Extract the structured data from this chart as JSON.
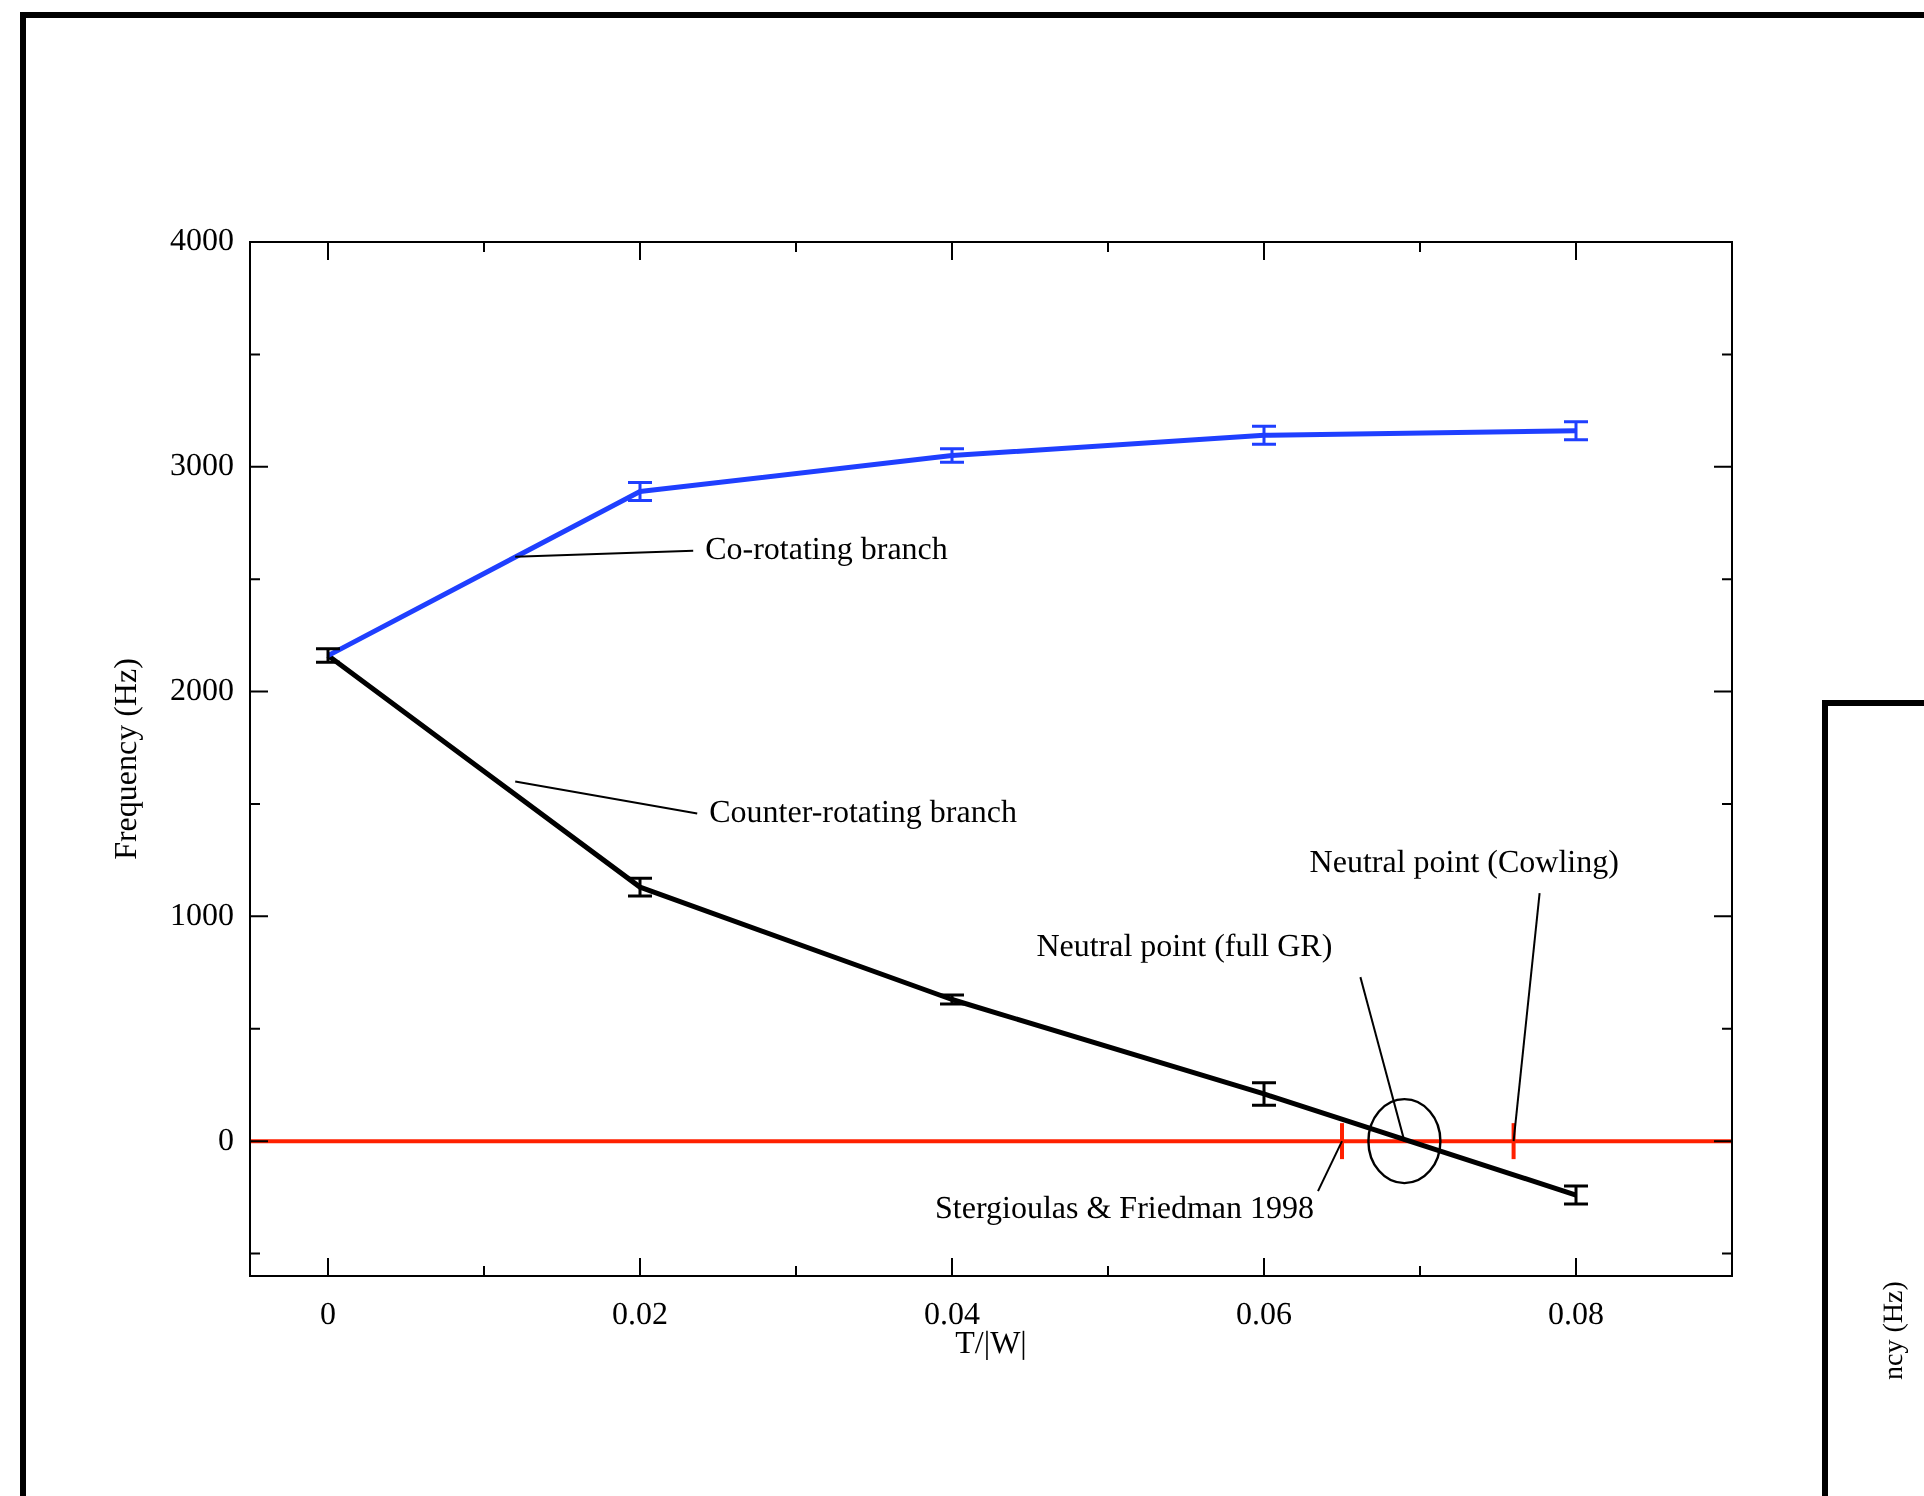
{
  "chart_data": {
    "type": "line",
    "xlabel": "T/|W|",
    "ylabel": "Frequency (Hz)",
    "x": [
      0,
      0.02,
      0.04,
      0.06,
      0.08
    ],
    "series": [
      {
        "color": "#1f3fff",
        "values": [
          2160,
          2890,
          3050,
          3140,
          3160
        ],
        "errors": [
          null,
          40,
          30,
          40,
          40
        ]
      },
      {
        "color": "#000000",
        "values": [
          2160,
          1130,
          630,
          210,
          -240
        ],
        "errors": [
          30,
          40,
          20,
          50,
          40
        ]
      }
    ],
    "xlim": [
      -0.005,
      0.09
    ],
    "xticks": [
      0,
      {
        "value": 0.01,
        "label": null
      },
      0.02,
      {
        "value": 0.03,
        "label": null
      },
      0.04,
      {
        "value": 0.05,
        "label": null
      },
      0.06,
      {
        "value": 0.07,
        "label": null
      },
      0.08,
      {
        "value": 0.09,
        "label": null
      }
    ],
    "ylim": [
      -600,
      4000
    ],
    "yticks": [
      {
        "value": -500,
        "label": null
      },
      0,
      {
        "value": 500,
        "label": null
      },
      1000,
      {
        "value": 1500,
        "label": null
      },
      2000,
      {
        "value": 2500,
        "label": null
      },
      3000,
      {
        "value": 3500,
        "label": null
      },
      4000
    ],
    "ref_lines": [
      {
        "axis": "y",
        "value": 0,
        "color": "#ff2000"
      }
    ],
    "annotations": [
      {
        "text": "Co-rotating branch",
        "x": 0.012,
        "y": 2600
      },
      {
        "text": "Counter-rotating branch",
        "x": 0.012,
        "y": 1600
      },
      {
        "text": "Neutral point (full GR)",
        "x": 0.069,
        "y": 0
      },
      {
        "text": "Neutral point (Cowling)",
        "x": 0.076,
        "y": 0
      },
      {
        "text": "Stergioulas & Friedman 1998",
        "x": 0.065,
        "y": 0
      },
      "ncy (Hz)"
    ],
    "grid": false,
    "legend": false,
    "line_style": "solid"
  }
}
